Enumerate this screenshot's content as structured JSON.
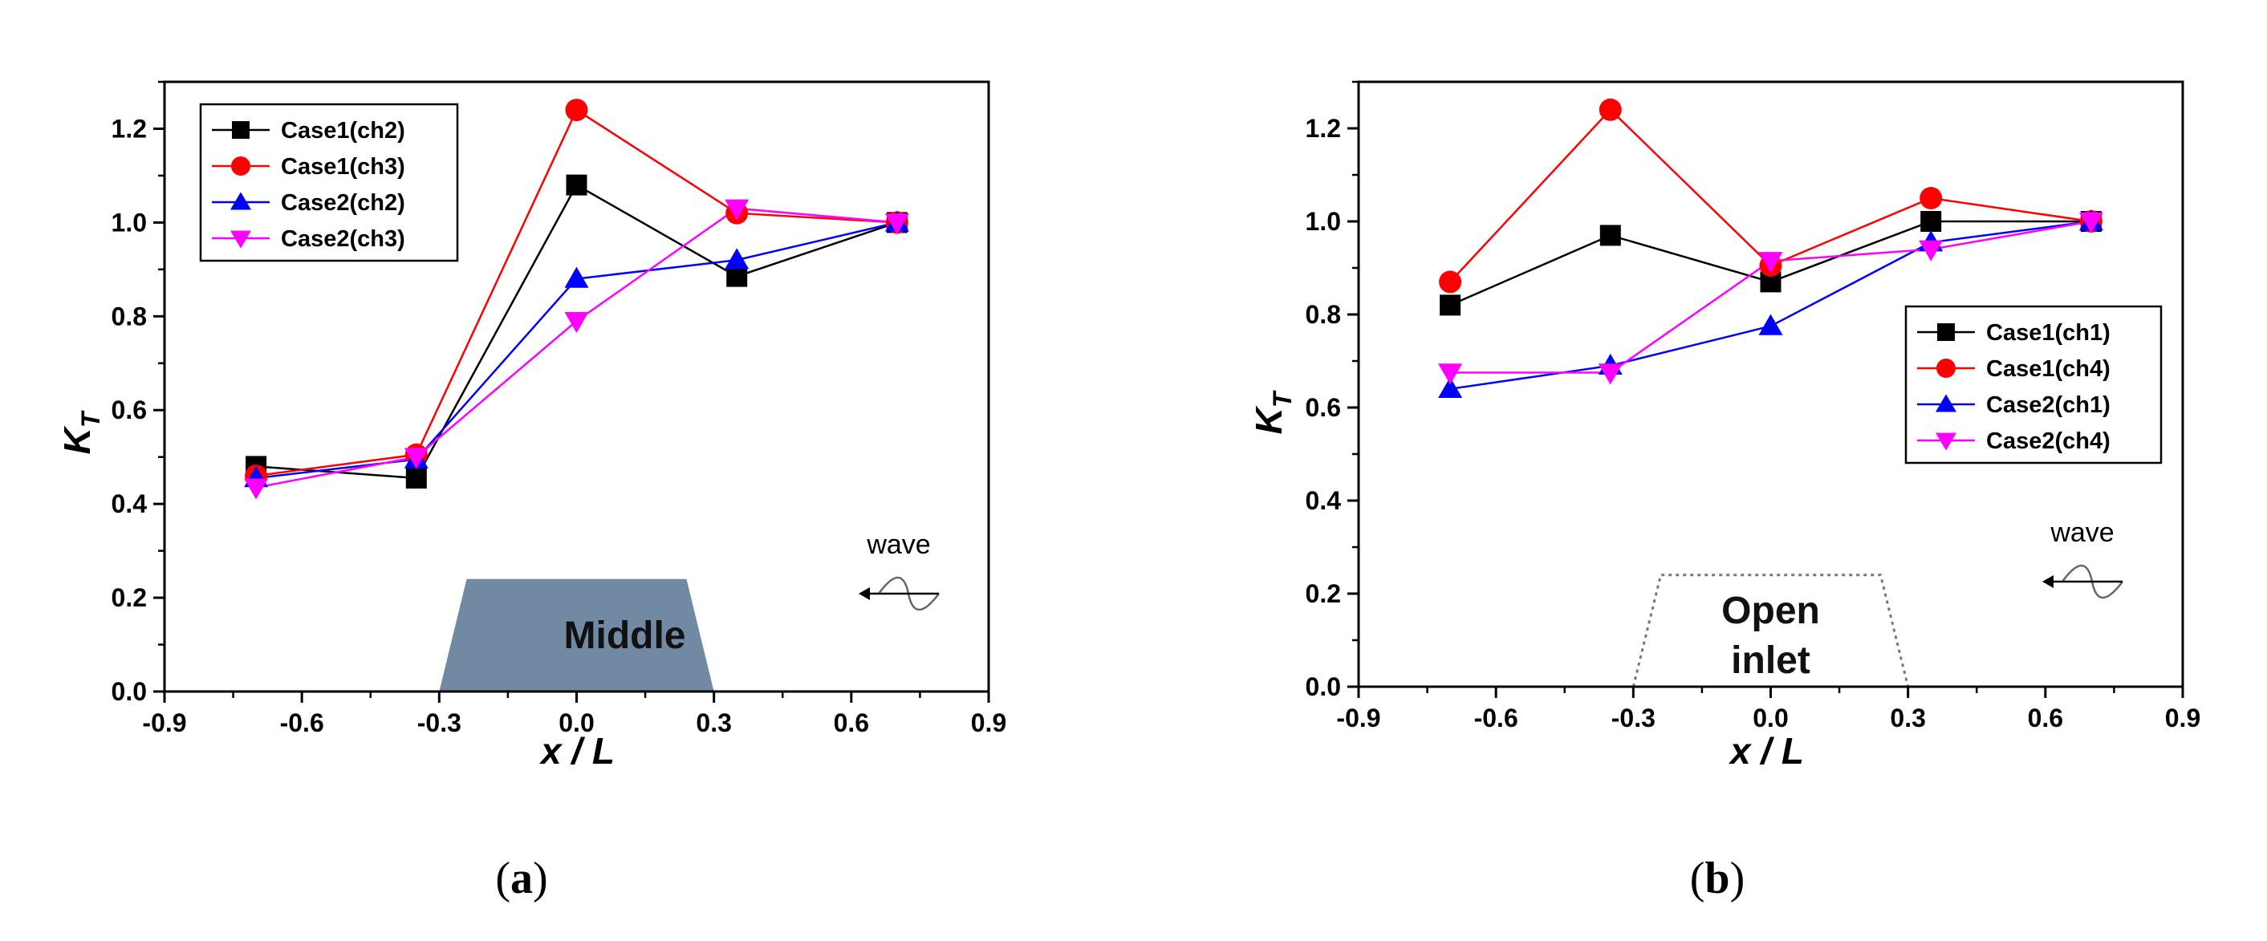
{
  "chart_data": [
    {
      "type": "line",
      "panel": "a",
      "caption_letter": "a",
      "xlabel": "x / L",
      "ylabel": "K",
      "ylabel_sub": "T",
      "xlim": [
        -0.9,
        0.9
      ],
      "ylim": [
        0.0,
        1.3
      ],
      "xticks": [
        "-0.9",
        "-0.6",
        "-0.3",
        "0.0",
        "0.3",
        "0.6",
        "0.9"
      ],
      "yticks": [
        "0.0",
        "0.2",
        "0.4",
        "0.6",
        "0.8",
        "1.0",
        "1.2"
      ],
      "legend_position": "top-left",
      "series": [
        {
          "name": "Case1(ch2)",
          "color": "#000000",
          "marker": "square",
          "x": [
            -0.7,
            -0.35,
            0.0,
            0.35,
            0.7
          ],
          "y": [
            0.48,
            0.455,
            1.08,
            0.885,
            1.0
          ]
        },
        {
          "name": "Case1(ch3)",
          "color": "#ff0000",
          "marker": "circle",
          "x": [
            -0.7,
            -0.35,
            0.0,
            0.35,
            0.7
          ],
          "y": [
            0.46,
            0.505,
            1.24,
            1.02,
            1.0
          ]
        },
        {
          "name": "Case2(ch2)",
          "color": "#0000ff",
          "marker": "triangle-up",
          "x": [
            -0.7,
            -0.35,
            0.0,
            0.35,
            0.7
          ],
          "y": [
            0.455,
            0.495,
            0.88,
            0.92,
            1.0
          ]
        },
        {
          "name": "Case2(ch3)",
          "color": "#ff00ff",
          "marker": "triangle-down",
          "x": [
            -0.7,
            -0.35,
            0.0,
            0.35,
            0.7
          ],
          "y": [
            0.435,
            0.5,
            0.79,
            1.03,
            1.0
          ]
        }
      ],
      "annotation": {
        "label": "Middle",
        "style": "filled",
        "fill": "#7189a3",
        "x_range_bottom": [
          -0.3,
          0.3
        ],
        "x_range_top": [
          -0.24,
          0.24
        ],
        "y_top": 0.24
      },
      "wave_label": "wave"
    },
    {
      "type": "line",
      "panel": "b",
      "caption_letter": "b",
      "xlabel": "x / L",
      "ylabel": "K",
      "ylabel_sub": "T",
      "xlim": [
        -0.9,
        0.9
      ],
      "ylim": [
        0.0,
        1.3
      ],
      "xticks": [
        "-0.9",
        "-0.6",
        "-0.3",
        "0.0",
        "0.3",
        "0.6",
        "0.9"
      ],
      "yticks": [
        "0.0",
        "0.2",
        "0.4",
        "0.6",
        "0.8",
        "1.0",
        "1.2"
      ],
      "legend_position": "right",
      "series": [
        {
          "name": "Case1(ch1)",
          "color": "#000000",
          "marker": "square",
          "x": [
            -0.7,
            -0.35,
            0.0,
            0.35,
            0.7
          ],
          "y": [
            0.82,
            0.97,
            0.87,
            1.0,
            1.0
          ]
        },
        {
          "name": "Case1(ch4)",
          "color": "#ff0000",
          "marker": "circle",
          "x": [
            -0.7,
            -0.35,
            0.0,
            0.35,
            0.7
          ],
          "y": [
            0.87,
            1.24,
            0.905,
            1.05,
            1.0
          ]
        },
        {
          "name": "Case2(ch1)",
          "color": "#0000ff",
          "marker": "triangle-up",
          "x": [
            -0.7,
            -0.35,
            0.0,
            0.35,
            0.7
          ],
          "y": [
            0.64,
            0.69,
            0.775,
            0.955,
            1.0
          ]
        },
        {
          "name": "Case2(ch4)",
          "color": "#ff00ff",
          "marker": "triangle-down",
          "x": [
            -0.7,
            -0.35,
            0.0,
            0.35,
            0.7
          ],
          "y": [
            0.675,
            0.675,
            0.915,
            0.94,
            1.0
          ]
        }
      ],
      "annotation": {
        "label": "Open inlet",
        "label_lines": [
          "Open",
          "inlet"
        ],
        "style": "dotted",
        "fill": "none",
        "x_range_bottom": [
          -0.3,
          0.3
        ],
        "x_range_top": [
          -0.24,
          0.24
        ],
        "y_top": 0.24
      },
      "wave_label": "wave"
    }
  ]
}
